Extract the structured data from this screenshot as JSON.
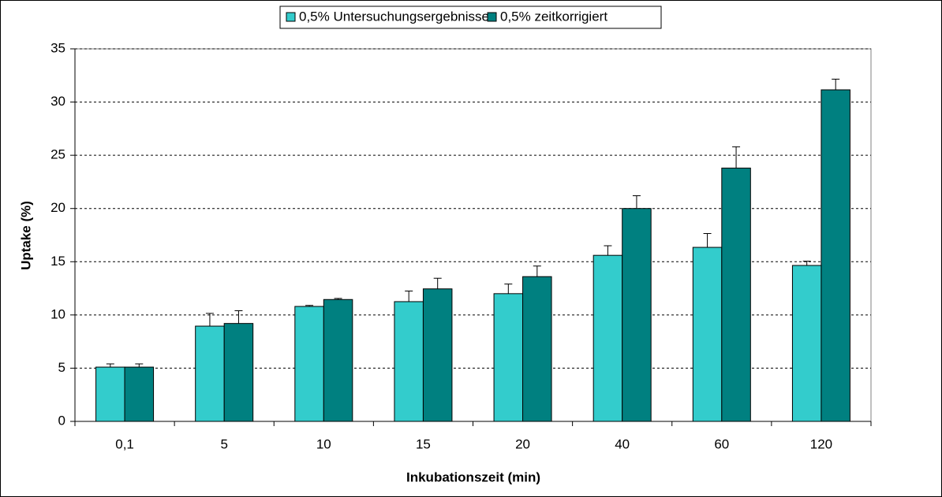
{
  "chart_data": {
    "type": "bar",
    "categories": [
      "0,1",
      "5",
      "10",
      "15",
      "20",
      "40",
      "60",
      "120"
    ],
    "series": [
      {
        "name": "0,5% Untersuchungsergebnisse",
        "color": "#33cccc",
        "values": [
          5.1,
          8.95,
          10.8,
          11.25,
          12.0,
          15.6,
          16.35,
          14.65
        ],
        "errors": [
          0.3,
          1.2,
          0.1,
          1.0,
          0.9,
          0.9,
          1.3,
          0.4
        ]
      },
      {
        "name": "0,5% zeitkorrigiert",
        "color": "#008080",
        "values": [
          5.1,
          9.2,
          11.45,
          12.45,
          13.6,
          20.0,
          23.8,
          31.15
        ],
        "errors": [
          0.3,
          1.2,
          0.1,
          1.0,
          1.0,
          1.2,
          2.0,
          1.0
        ]
      }
    ],
    "ylim": [
      0,
      35
    ],
    "yticks": [
      0,
      5,
      10,
      15,
      20,
      25,
      30,
      35
    ],
    "xlabel": "Inkubationszeit (min)",
    "ylabel": "Uptake (%)",
    "grid": true,
    "legend": "top"
  }
}
